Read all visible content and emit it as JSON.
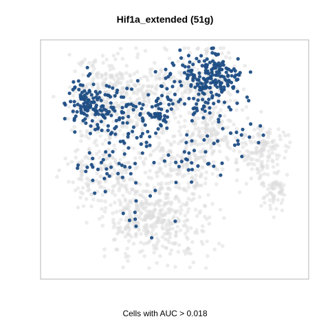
{
  "chart_data": {
    "type": "scatter",
    "title": "Hif1a_extended (51g)",
    "caption": "Cells with AUC > 0.018",
    "xlabel": "",
    "ylabel": "",
    "grid": false,
    "legend": "none",
    "series": [
      {
        "name": "",
        "color": "#dcdcdc",
        "points": []
      },
      {
        "name": "",
        "color": "#1f4e85",
        "points": []
      }
    ],
    "clusters_background": [
      {
        "cx": -0.58,
        "cy": 0.5,
        "sx": 0.16,
        "sy": 0.2,
        "n": 220
      },
      {
        "cx": -0.25,
        "cy": 0.55,
        "sx": 0.2,
        "sy": 0.2,
        "n": 200
      },
      {
        "cx": -0.55,
        "cy": -0.12,
        "sx": 0.17,
        "sy": 0.16,
        "n": 200
      },
      {
        "cx": 0.05,
        "cy": -0.05,
        "sx": 0.18,
        "sy": 0.18,
        "n": 220
      },
      {
        "cx": 0.22,
        "cy": 0.68,
        "sx": 0.15,
        "sy": 0.18,
        "n": 170
      },
      {
        "cx": 0.3,
        "cy": 0.28,
        "sx": 0.12,
        "sy": 0.12,
        "n": 110
      },
      {
        "cx": 0.68,
        "cy": 0.05,
        "sx": 0.1,
        "sy": 0.12,
        "n": 150
      },
      {
        "cx": 0.82,
        "cy": -0.3,
        "sx": 0.06,
        "sy": 0.1,
        "n": 60
      },
      {
        "cx": -0.12,
        "cy": -0.62,
        "sx": 0.2,
        "sy": 0.17,
        "n": 280
      },
      {
        "cx": -0.28,
        "cy": -0.5,
        "sx": 0.13,
        "sy": 0.12,
        "n": 90
      }
    ],
    "clusters_highlight": [
      {
        "cx": -0.68,
        "cy": 0.48,
        "sx": 0.11,
        "sy": 0.12,
        "n": 120
      },
      {
        "cx": -0.45,
        "cy": 0.45,
        "sx": 0.1,
        "sy": 0.1,
        "n": 50
      },
      {
        "cx": 0.32,
        "cy": 0.76,
        "sx": 0.12,
        "sy": 0.1,
        "n": 150
      },
      {
        "cx": 0.22,
        "cy": 0.58,
        "sx": 0.1,
        "sy": 0.15,
        "n": 60
      },
      {
        "cx": -0.12,
        "cy": 0.38,
        "sx": 0.04,
        "sy": 0.06,
        "n": 28
      },
      {
        "cx": -0.5,
        "cy": 0.0,
        "sx": 0.15,
        "sy": 0.15,
        "n": 40
      },
      {
        "cx": -0.05,
        "cy": 0.55,
        "sx": 0.1,
        "sy": 0.12,
        "n": 25
      },
      {
        "cx": 0.15,
        "cy": 0.0,
        "sx": 0.12,
        "sy": 0.12,
        "n": 25
      },
      {
        "cx": -0.3,
        "cy": 0.2,
        "sx": 0.12,
        "sy": 0.12,
        "n": 20
      },
      {
        "cx": 0.45,
        "cy": 0.25,
        "sx": 0.12,
        "sy": 0.12,
        "n": 14
      },
      {
        "cx": -0.2,
        "cy": -0.45,
        "sx": 0.15,
        "sy": 0.15,
        "n": 10
      },
      {
        "cx": 0.65,
        "cy": 0.2,
        "sx": 0.1,
        "sy": 0.1,
        "n": 6
      }
    ]
  }
}
